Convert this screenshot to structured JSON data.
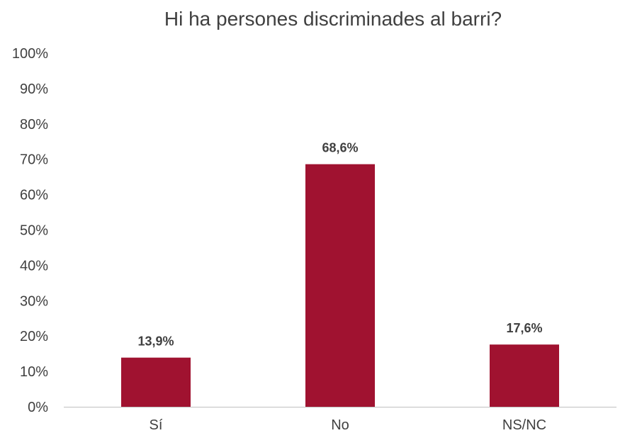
{
  "chart_data": {
    "type": "bar",
    "title": "Hi ha persones discriminades al barri?",
    "xlabel": "",
    "ylabel": "",
    "categories": [
      "Sí",
      "No",
      "NS/NC"
    ],
    "values": [
      13.9,
      68.6,
      17.6
    ],
    "data_labels": [
      "13,9%",
      "68,6%",
      "17,6%"
    ],
    "ylim": [
      0,
      100
    ],
    "yticks": [
      0,
      10,
      20,
      30,
      40,
      50,
      60,
      70,
      80,
      90,
      100
    ],
    "ytick_labels": [
      "0%",
      "10%",
      "20%",
      "30%",
      "40%",
      "50%",
      "60%",
      "70%",
      "80%",
      "90%",
      "100%"
    ],
    "grid": false,
    "legend": "none",
    "bar_color": "#A01230",
    "axis_color": "#BFBFBF",
    "text_color": "#404040"
  }
}
